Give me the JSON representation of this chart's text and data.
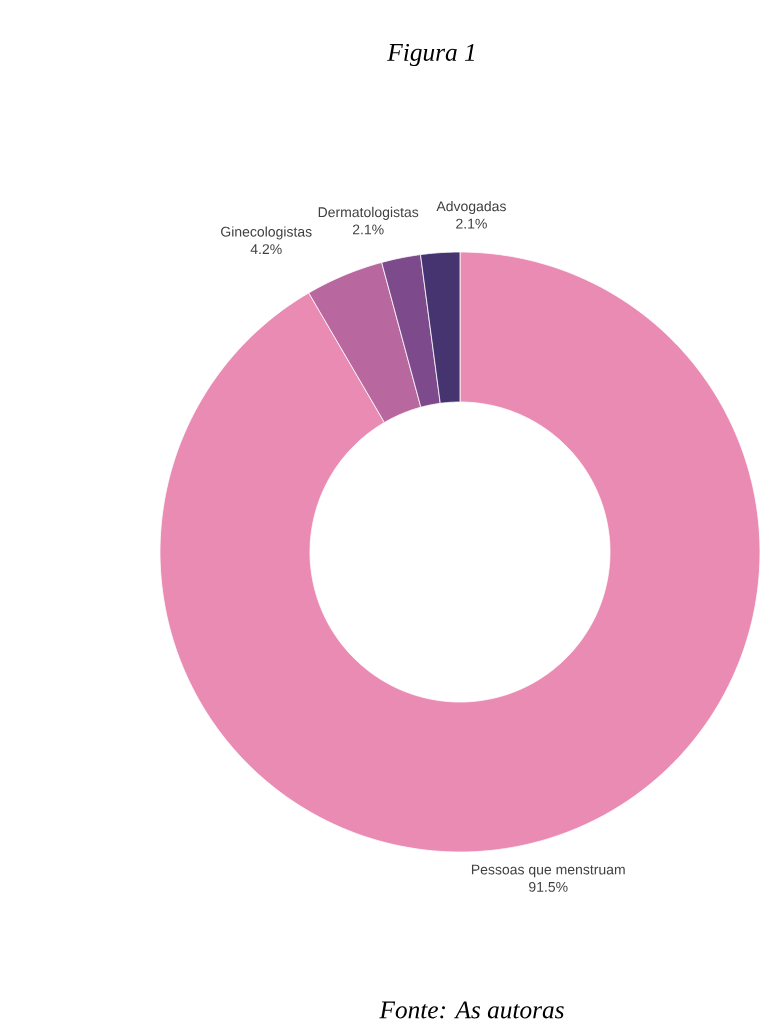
{
  "chart_data": {
    "type": "donut",
    "title": "Figura 1",
    "categories": [
      "Pessoas que menstruam",
      "Ginecologistas",
      "Dermatologistas",
      "Advogadas"
    ],
    "values": [
      91.5,
      4.2,
      2.1,
      2.1
    ],
    "value_labels": [
      "91.5%",
      "4.2%",
      "2.1%",
      "2.1%"
    ],
    "colors": [
      "#ea8bb3",
      "#b9679f",
      "#7d4a8b",
      "#45346f"
    ],
    "annotations": [
      "Fonte: As autoras"
    ]
  }
}
